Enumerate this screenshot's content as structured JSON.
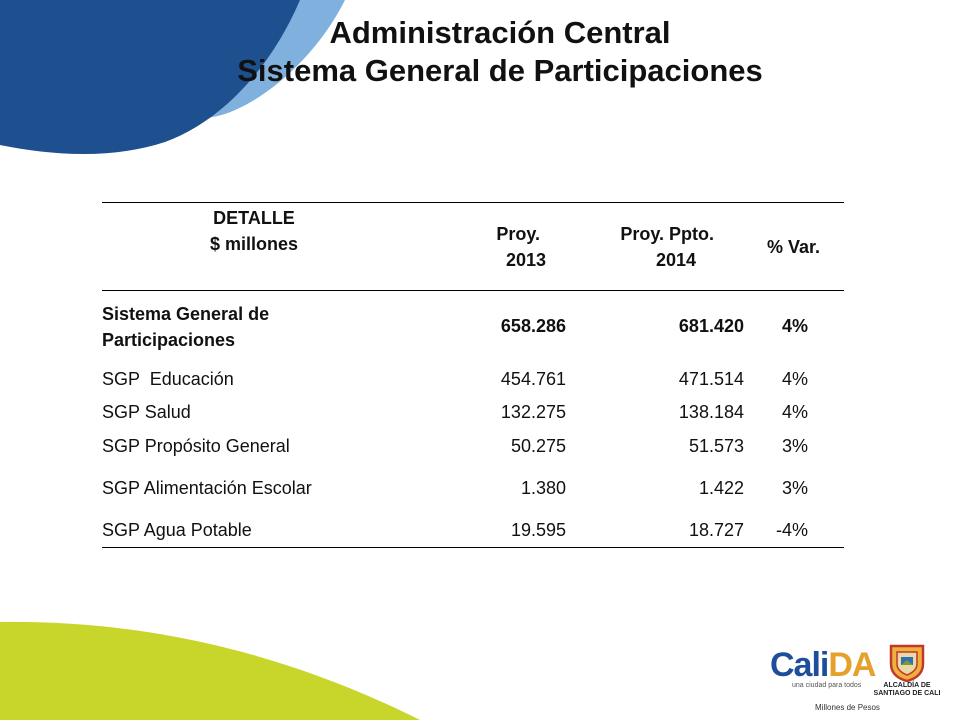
{
  "title": {
    "line1": "Administración Central",
    "line2": "Sistema General de Participaciones"
  },
  "table": {
    "headers": {
      "detalle_line1": "DETALLE",
      "detalle_line2": "$ millones",
      "proy_line1": "Proy.",
      "proy_line2": "2013",
      "ppto_line1": "Proy. Ppto.",
      "ppto_line2": "2014",
      "var": "% Var."
    },
    "rows": [
      {
        "label": "Sistema General de Participaciones",
        "proy2013": "658.286",
        "ppto2014": "681.420",
        "var": "4%"
      },
      {
        "label": "SGP  Educación",
        "proy2013": "454.761",
        "ppto2014": "471.514",
        "var": "4%"
      },
      {
        "label": "SGP Salud",
        "proy2013": "132.275",
        "ppto2014": "138.184",
        "var": "4%"
      },
      {
        "label": "SGP Propósito General",
        "proy2013": "50.275",
        "ppto2014": "51.573",
        "var": "3%"
      },
      {
        "label": "SGP Alimentación Escolar",
        "proy2013": "1.380",
        "ppto2014": "1.422",
        "var": "3%"
      },
      {
        "label": "SGP Agua Potable",
        "proy2013": "19.595",
        "ppto2014": "18.727",
        "var": "-4%"
      }
    ]
  },
  "logos": {
    "calida_main": "CaliDA",
    "calida_tagline": "una ciudad para todos",
    "alcaldia_line1": "ALCALDÍA DE",
    "alcaldia_line2": "SANTIAGO DE CALI"
  },
  "footnote": "Millones de Pesos",
  "colors": {
    "dark_blue": "#1d4e8c",
    "light_blue": "#7fb0de",
    "green": "#c8d62b"
  }
}
